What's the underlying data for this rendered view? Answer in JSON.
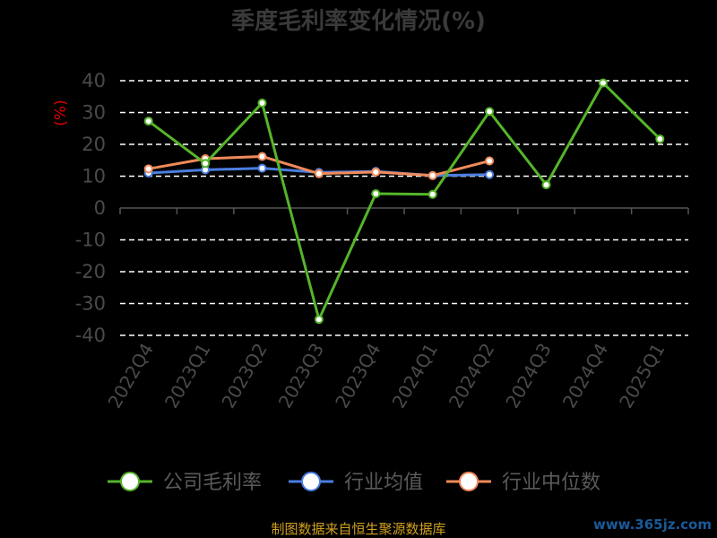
{
  "chart_data": {
    "type": "line",
    "title": "季度毛利率变化情况(%)",
    "unit": "(%)",
    "categories": [
      "2022Q4",
      "2023Q1",
      "2023Q2",
      "2023Q3",
      "2023Q4",
      "2024Q1",
      "2024Q2",
      "2024Q3",
      "2024Q4",
      "2025Q1"
    ],
    "ylim": [
      -40,
      40
    ],
    "yticks": [
      40,
      30,
      20,
      10,
      0,
      -10,
      -20,
      -30,
      -40
    ],
    "grid": true,
    "legend_position": "bottom",
    "series": [
      {
        "name": "公司毛利率",
        "color": "#55b52a",
        "values": [
          27.3,
          14.0,
          33.0,
          -35.0,
          4.5,
          4.3,
          30.3,
          7.3,
          39.3,
          21.7
        ]
      },
      {
        "name": "行业均值",
        "color": "#4a7ee0",
        "values": [
          11.0,
          12.0,
          12.5,
          11.2,
          11.5,
          10.2,
          10.5,
          null,
          null,
          null
        ]
      },
      {
        "name": "行业中位数",
        "color": "#f08a5a",
        "values": [
          12.3,
          15.5,
          16.2,
          10.8,
          11.3,
          10.2,
          14.8,
          null,
          null,
          null
        ]
      }
    ]
  },
  "footer": "制图数据来自恒生聚源数据库",
  "watermark": "www.365jz.com"
}
